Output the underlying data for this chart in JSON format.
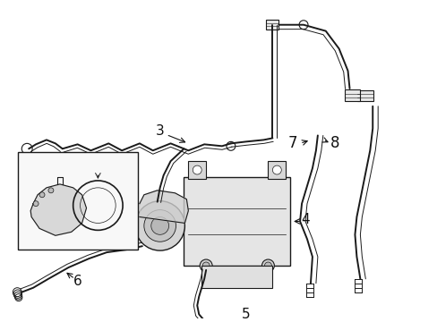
{
  "bg_color": "#ffffff",
  "line_color": "#1a1a1a",
  "label_color": "#111111",
  "figsize": [
    4.89,
    3.6
  ],
  "dpi": 100,
  "lw_pipe": 1.4,
  "lw_inner": 0.7
}
